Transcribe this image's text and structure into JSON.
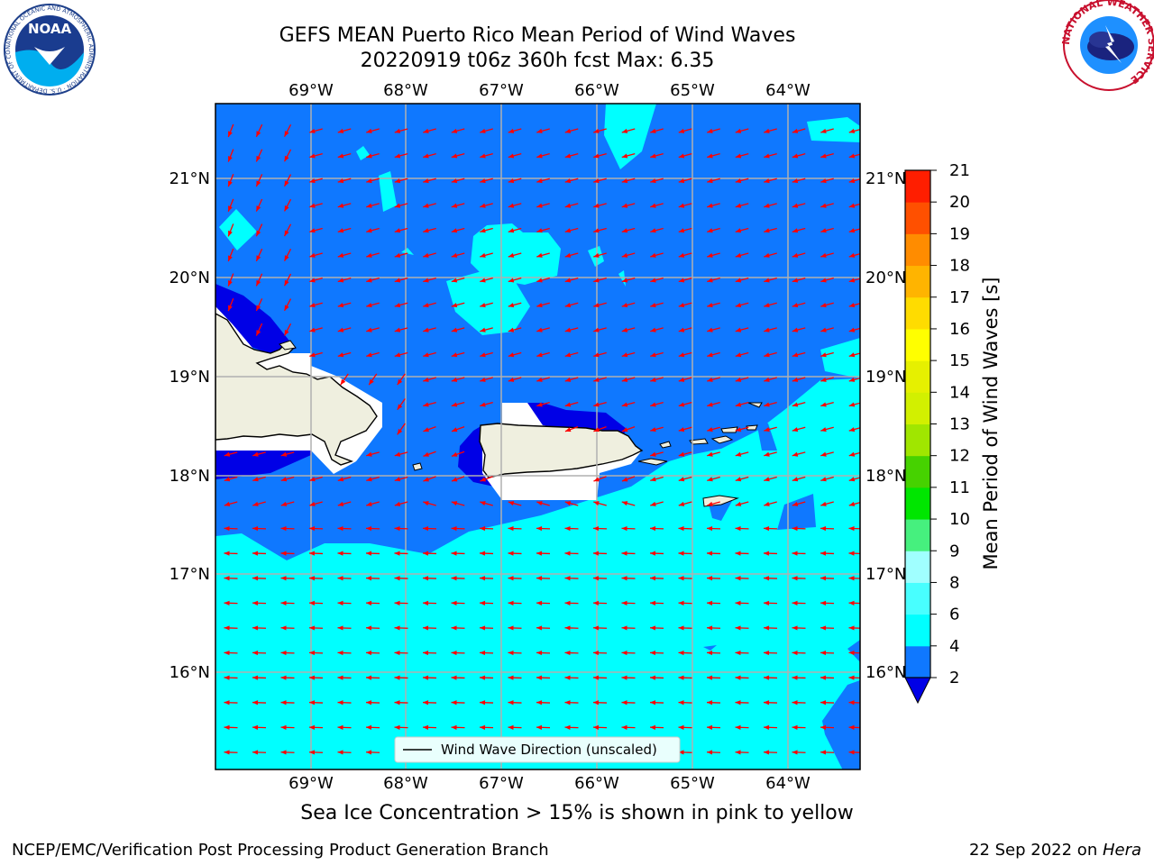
{
  "title": {
    "line1": "GEFS MEAN Puerto Rico Mean Period of Wind Waves",
    "line2": "20220919 t06z 360h fcst   Max: 6.35"
  },
  "map": {
    "lon_ticks": [
      "69°W",
      "68°W",
      "67°W",
      "66°W",
      "65°W",
      "64°W"
    ],
    "lat_ticks": [
      "21°N",
      "20°N",
      "19°N",
      "18°N",
      "17°N",
      "16°N"
    ],
    "legend_label": "Wind Wave Direction (unscaled)",
    "arrow_color": "#ff0000",
    "ocean_colors": {
      "band_2_4": "#0f78ff",
      "band_4_6": "#00ffff",
      "below_2": "#0000e6"
    }
  },
  "colorbar": {
    "label": "Mean Period of Wind Waves [s]",
    "ticks": [
      "2",
      "4",
      "6",
      "8",
      "9",
      "10",
      "11",
      "12",
      "13",
      "14",
      "15",
      "16",
      "17",
      "18",
      "19",
      "20",
      "21"
    ],
    "colors": [
      "#0f78ff",
      "#00ffff",
      "#48ffff",
      "#a0ffff",
      "#46f07e",
      "#00e600",
      "#46d200",
      "#a0e600",
      "#d2f000",
      "#e6f000",
      "#ffff00",
      "#ffdc00",
      "#ffb400",
      "#ff8c00",
      "#ff5000",
      "#ff1e00"
    ],
    "under_color": "#0000e6"
  },
  "caption": "Sea Ice Concentration > 15% is shown in pink to yellow",
  "footer": {
    "left": "NCEP/EMC/Verification Post Processing Product Generation Branch",
    "right_prefix": "22 Sep 2022 on ",
    "right_host": "Hera"
  },
  "logos": {
    "noaa_text": "NOAA",
    "noaa_ring": "NATIONAL OCEANIC AND ATMOSPHERIC ADMINISTRATION · U.S. DEPARTMENT OF COMMERCE",
    "nws_ring": "NATIONAL WEATHER SERVICE"
  }
}
